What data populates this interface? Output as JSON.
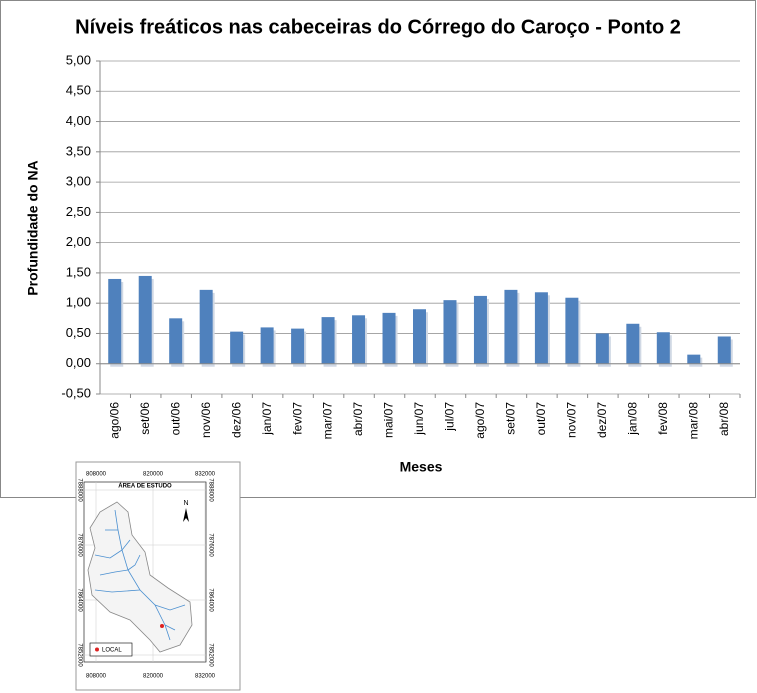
{
  "chart_data": {
    "type": "bar",
    "title": "Níveis freáticos nas cabeceiras do Córrego do Caroço - Ponto 2",
    "x_label": "Meses",
    "y_label": "Profundidade do NA",
    "categories": [
      "ago/06",
      "set/06",
      "out/06",
      "nov/06",
      "dez/06",
      "jan/07",
      "fev/07",
      "mar/07",
      "abr/07",
      "mai/07",
      "jun/07",
      "jul/07",
      "ago/07",
      "set/07",
      "out/07",
      "nov/07",
      "dez/07",
      "jan/08",
      "fev/08",
      "mar/08",
      "abr/08"
    ],
    "values": [
      1.4,
      1.45,
      0.75,
      1.22,
      0.53,
      0.6,
      0.58,
      0.77,
      0.8,
      0.84,
      0.9,
      1.05,
      1.12,
      1.22,
      1.18,
      1.09,
      0.5,
      0.66,
      0.52,
      0.15,
      0.45
    ],
    "color": "#4f81bd",
    "ylim": [
      -0.5,
      5.0
    ],
    "yticks": [
      {
        "value": -0.5,
        "label": "-0,50"
      },
      {
        "value": 0,
        "label": "0,00"
      },
      {
        "value": 0.5,
        "label": "0,50"
      },
      {
        "value": 1.0,
        "label": "1,00"
      },
      {
        "value": 1.5,
        "label": "1,50"
      },
      {
        "value": 2.0,
        "label": "2,00"
      },
      {
        "value": 2.5,
        "label": "2,50"
      },
      {
        "value": 3.0,
        "label": "3,00"
      },
      {
        "value": 3.5,
        "label": "3,50"
      },
      {
        "value": 4.0,
        "label": "4,00"
      },
      {
        "value": 4.5,
        "label": "4,50"
      },
      {
        "value": 5.0,
        "label": "5,00"
      }
    ],
    "grid": true
  },
  "map": {
    "title": "ÁREA DE ESTUDO",
    "x_labels": [
      "808000",
      "820000",
      "832000"
    ],
    "y_labels": [
      "7888000",
      "7876000",
      "7864000",
      "7852000"
    ],
    "north": "N",
    "legend": "LOCAL"
  }
}
